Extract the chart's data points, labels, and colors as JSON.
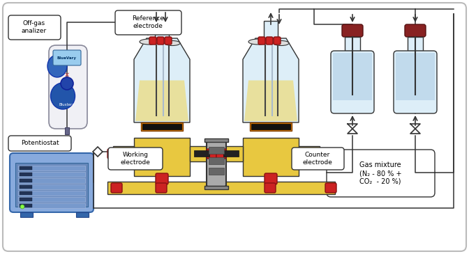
{
  "background_color": "#ffffff",
  "labels": {
    "off_gas": "Off-gas\nanalizer",
    "reference": "Reference\nelectrode",
    "potentiostat": "Potentiostat",
    "working": "Working\nelectrode",
    "counter": "Counter\nelectrode",
    "gas_mixture": "Gas mixture\n(N₂ - 80 % +\nCO₂  - 20 %)"
  },
  "colors": {
    "yellow_body": "#e8c840",
    "yellow_light": "#f0d860",
    "glass_clear": "#ddeef8",
    "glass_outline": "#aabbcc",
    "light_blue": "#b8d4e8",
    "blue_device": "#5577bb",
    "blue_light": "#88aacc",
    "blue_pot": "#7799cc",
    "red_cap": "#cc2222",
    "dark": "#333333",
    "gray_mid": "#888888",
    "gray_light": "#cccccc",
    "black": "#000000",
    "white": "#ffffff",
    "orange_ring": "#cc7700",
    "dark_blue_device": "#1144aa",
    "membrane_gray": "#999999"
  }
}
